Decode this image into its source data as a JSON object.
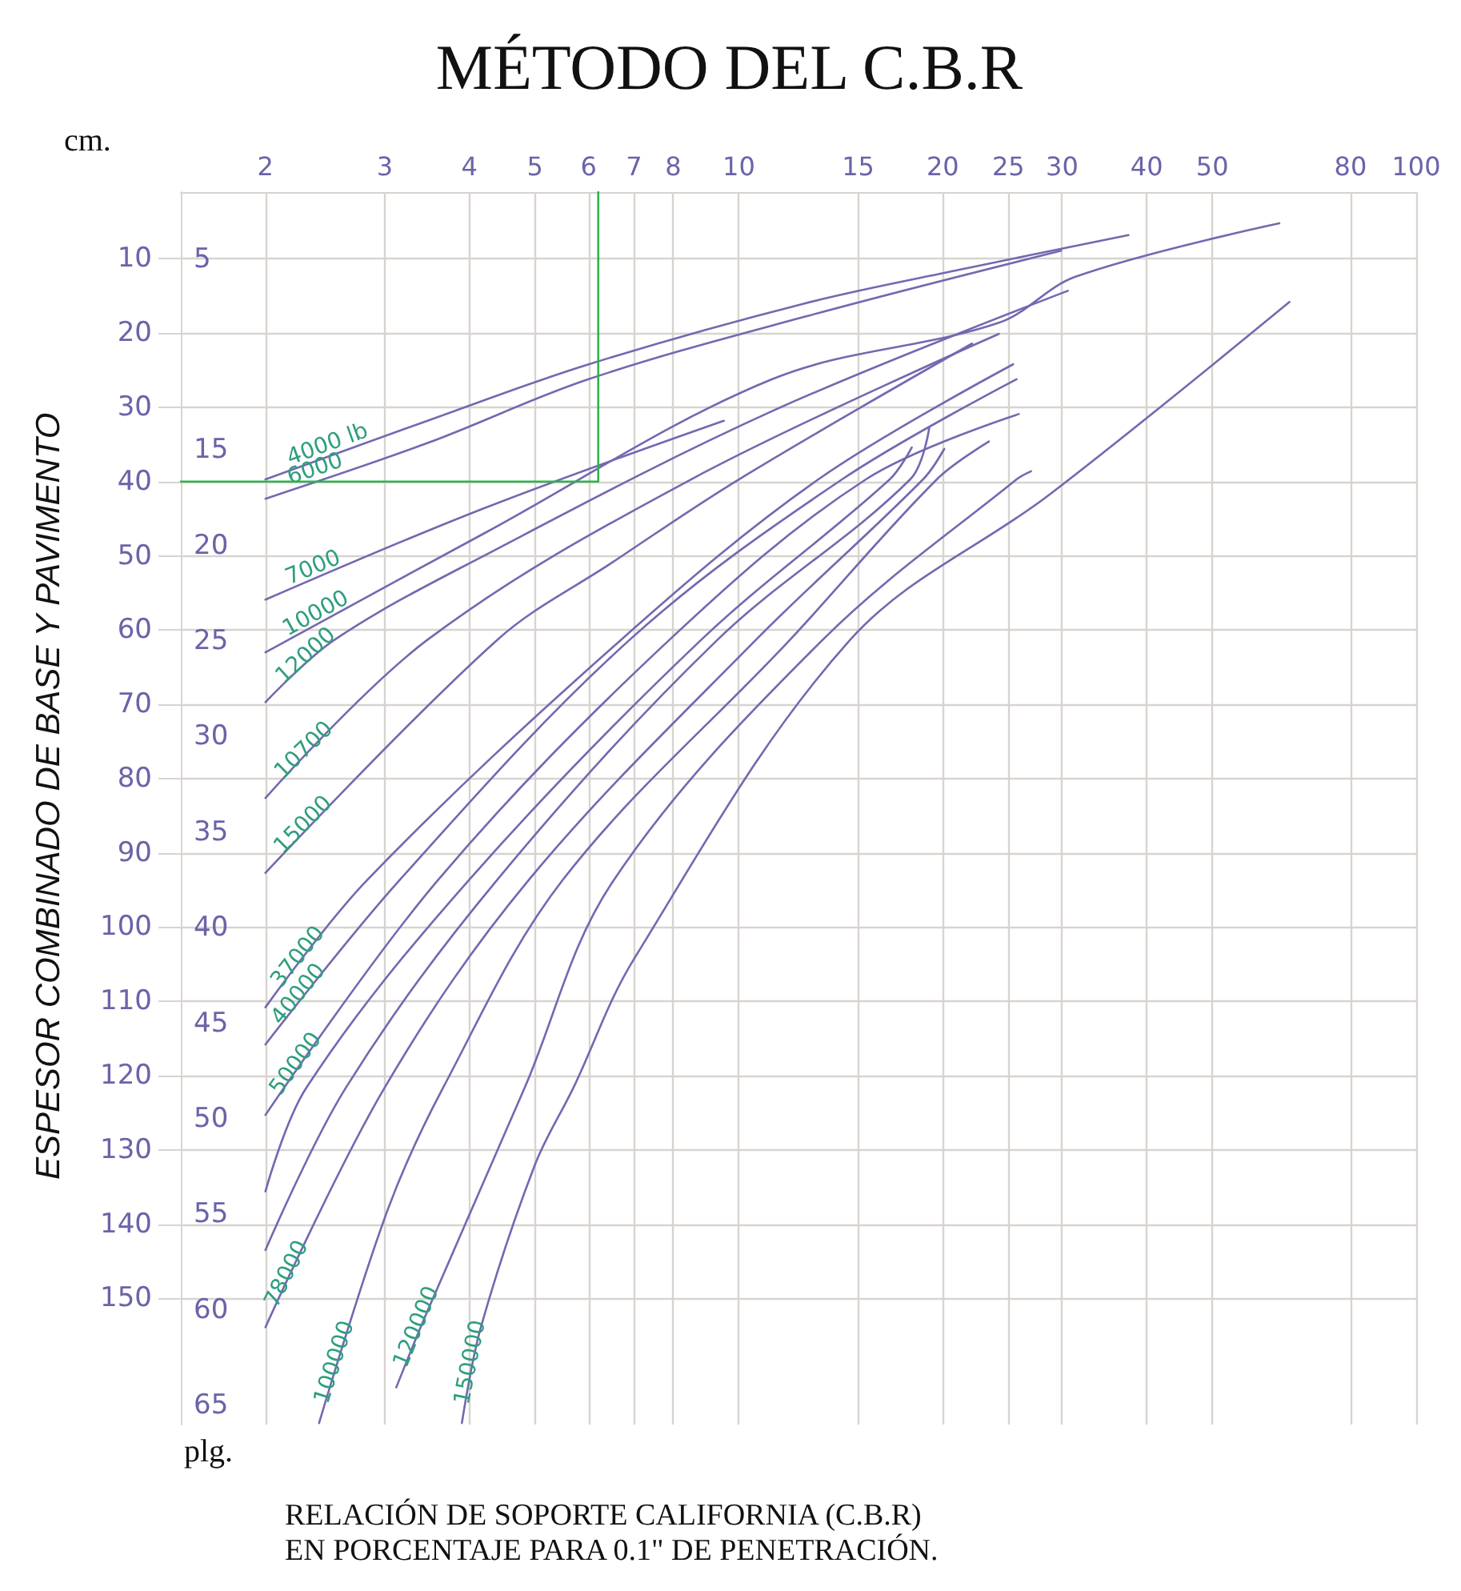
{
  "chart_data": {
    "type": "line",
    "title": "MÉTODO DEL C.B.R",
    "xlabel": "RELACIÓN DE SOPORTE CALIFORNIA (C.B.R)\nEN PORCENTAJE PARA 0.1\" DE PENETRACIÓN.",
    "ylabel": "ESPESOR COMBINADO DE BASE Y PAVIMENTO",
    "annotations": [
      "cm.",
      "plg."
    ],
    "log": "x",
    "xlim": [
      1.5,
      100
    ],
    "xticks": [
      2,
      3,
      4,
      5,
      6,
      7,
      8,
      10,
      15,
      20,
      25,
      30,
      40,
      50,
      80,
      100
    ],
    "ylim": [
      167,
      1
    ],
    "yticks": [
      10,
      20,
      30,
      40,
      50,
      60,
      70,
      80,
      90,
      100,
      110,
      120,
      130,
      140,
      150
    ],
    "y2lim": [
      66,
      1.5
    ],
    "y2ticks": [
      5,
      15,
      20,
      25,
      30,
      35,
      40,
      45,
      50,
      55,
      60,
      65
    ],
    "grid": true,
    "legend": false,
    "marker": "none",
    "line_style": "solid",
    "series": [
      {
        "name": "4000 lb",
        "color": "#7468b0",
        "x": [
          2,
          3.47,
          6,
          12.5,
          21.6,
          37.6
        ],
        "values": [
          39.7,
          31.8,
          24.2,
          16,
          11.3,
          6.8
        ]
      },
      {
        "name": "6000",
        "color": "#7468b0",
        "x": [
          2,
          3.47,
          6,
          12.5,
          29.9
        ],
        "values": [
          42.3,
          34.8,
          26.2,
          17.8,
          8.9
        ]
      },
      {
        "name": "7000",
        "color": "#7468b0",
        "x": [
          2,
          4.2,
          9.5
        ],
        "values": [
          55.9,
          43.6,
          31.8
        ]
      },
      {
        "name": "10000",
        "color": "#7468b0",
        "x": [
          2,
          4.2,
          11.2,
          24.2,
          31.4,
          62.8
        ],
        "values": [
          63,
          47,
          26.2,
          18.6,
          12.4,
          5.2
        ]
      },
      {
        "name": "12000",
        "color": "#7468b0",
        "x": [
          2,
          2.53,
          4.2,
          11.2,
          30.6
        ],
        "values": [
          69.7,
          61.3,
          50,
          30.5,
          14.3
        ]
      },
      {
        "name": "10700",
        "color": "#7468b0",
        "x": [
          2,
          3.47,
          8.5,
          24.2
        ],
        "values": [
          82.6,
          61.3,
          39.7,
          20.1
        ]
      },
      {
        "name": "15000",
        "color": "#7468b0",
        "x": [
          2,
          4.4,
          6.5,
          10,
          22.1
        ],
        "values": [
          92.7,
          61.3,
          50.9,
          39.7,
          21.4
        ]
      },
      {
        "name": "37000",
        "color": "#7468b0",
        "x": [
          2,
          2.83,
          6.7,
          13.1,
          25.4
        ],
        "values": [
          110.8,
          93.6,
          61.3,
          39.7,
          24.2
        ]
      },
      {
        "name": "40000",
        "color": "#7468b0",
        "x": [
          2,
          3.16,
          6.9,
          14.2,
          25.7
        ],
        "values": [
          115.8,
          93.6,
          61.3,
          39.7,
          26.2
        ]
      },
      {
        "name": "50000",
        "color": "#7468b0",
        "x": [
          2,
          3.6,
          7.9,
          15.4,
          25.9
        ],
        "values": [
          125.3,
          93.6,
          61.3,
          39.7,
          30.9
        ]
      },
      {
        "color": "#7468b0",
        "x": [
          2,
          2.3,
          4,
          8.8,
          16.7,
          18
        ],
        "values": [
          135.6,
          121.6,
          93.6,
          61.3,
          39.7,
          35.4
        ]
      },
      {
        "color": "#7468b0",
        "x": [
          2,
          2.63,
          4.4,
          9.3,
          17.9,
          19.1
        ],
        "values": [
          143.5,
          121.6,
          93.6,
          61.3,
          39.7,
          32.8
        ]
      },
      {
        "name": "78000",
        "color": "#7468b0",
        "x": [
          2,
          3,
          4.9,
          10.6,
          18.7,
          20.1
        ],
        "values": [
          153.9,
          121.6,
          93.6,
          61.3,
          39.7,
          35.6
        ]
      },
      {
        "name": "100000",
        "color": "#7468b0",
        "x": [
          2.4,
          3.03,
          3.66,
          5.5,
          11.9,
          19.6,
          23.4
        ],
        "values": [
          166.8,
          138.1,
          121.6,
          93.6,
          61.3,
          39.7,
          34.6
        ]
      },
      {
        "name": "120000",
        "color": "#7468b0",
        "x": [
          3.12,
          3.47,
          4.83,
          6.5,
          13.3,
          25.7,
          27
        ],
        "values": [
          162,
          151.7,
          121.6,
          94,
          61.3,
          39.7,
          38.6
        ]
      },
      {
        "name": "150000",
        "color": "#7468b0",
        "x": [
          3.9,
          4.16,
          5,
          5.7,
          7,
          14.6,
          28.8,
          65
        ],
        "values": [
          166.8,
          153.9,
          132,
          121.6,
          104.3,
          61.3,
          41.7,
          15.8
        ]
      },
      {
        "color": "#2fb24c",
        "x": [
          1.5,
          6.2,
          6.2
        ],
        "values": [
          40,
          40,
          1
        ]
      }
    ]
  }
}
